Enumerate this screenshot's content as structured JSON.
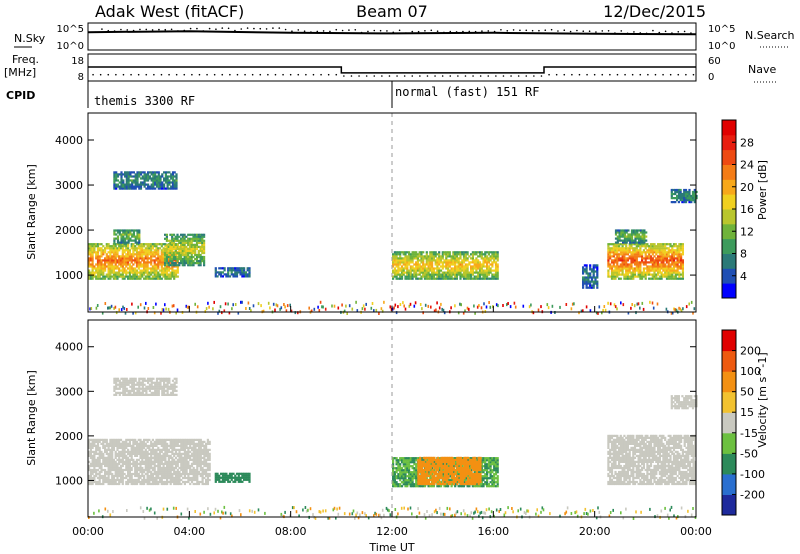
{
  "header": {
    "radar": "Adak West (fitACF)",
    "beam": "Beam 07",
    "date": "12/Dec/2015"
  },
  "strip_labels": {
    "nsky": "N.Sky",
    "nsearch": "N.Search",
    "freq": "Freq.",
    "freq_unit": "[MHz]",
    "nave": "Nave",
    "cpid": "CPID",
    "nsky_ticks": [
      "10^5",
      "10^0"
    ],
    "nsearch_ticks": [
      "10^5",
      "10^0"
    ],
    "freq_ticks": [
      "18",
      "8"
    ],
    "nave_ticks": [
      "60",
      "0"
    ]
  },
  "cpid_modes": [
    "themis 3300 RF",
    "normal (fast) 151 RF"
  ],
  "x_axis": {
    "label": "Time UT",
    "ticks": [
      "00:00",
      "04:00",
      "08:00",
      "12:00",
      "16:00",
      "20:00",
      "00:00"
    ]
  },
  "panels": {
    "power": {
      "ylabel": "Slant Range [km]",
      "yticks": [
        "4000",
        "3000",
        "2000",
        "1000"
      ],
      "cbar_label": "Power [dB]",
      "cbar_ticks": [
        "28",
        "24",
        "20",
        "16",
        "12",
        "8",
        "4"
      ],
      "cbar_colors": [
        "#0000ff",
        "#1f4fb4",
        "#2b7a78",
        "#3d9b5c",
        "#6fb33a",
        "#b9c62d",
        "#f0d020",
        "#f7a81b",
        "#f47c16",
        "#ee4a12",
        "#e81d0f",
        "#e00000"
      ]
    },
    "velocity": {
      "ylabel": "Slant Range [km]",
      "yticks": [
        "4000",
        "3000",
        "2000",
        "1000"
      ],
      "cbar_label": "Velocity [m s^-1]",
      "cbar_ticks": [
        "200",
        "100",
        "50",
        "15",
        "-15",
        "-50",
        "-100",
        "-200"
      ],
      "cbar_colors": [
        "#1e2a9c",
        "#2a6fcf",
        "#2c8a5a",
        "#6cc040",
        "#c9c9c0",
        "#f2c230",
        "#f39012",
        "#ee5a10",
        "#e00000"
      ]
    }
  },
  "chart_data": [
    {
      "type": "line",
      "title": "N.Sky / N.Search",
      "x": [
        "00:00",
        "04:00",
        "08:00",
        "12:00",
        "16:00",
        "20:00",
        "00:00"
      ],
      "series": [
        {
          "name": "N.Sky",
          "values": [
            2000,
            3000,
            1500,
            1200,
            1500,
            1000,
            800
          ]
        },
        {
          "name": "N.Search",
          "values": [
            100,
            100,
            100,
            100,
            100,
            100,
            100
          ]
        }
      ],
      "ylim": [
        1,
        100000
      ],
      "log_scale": true
    },
    {
      "type": "line",
      "title": "Freq. [MHz] / Nave",
      "x_hours": [
        0,
        10,
        10,
        18,
        18,
        24
      ],
      "series": [
        {
          "name": "Freq.",
          "values": [
            13.2,
            13.2,
            11.0,
            11.0,
            13.2,
            13.2
          ]
        },
        {
          "name": "Nave",
          "values": [
            14,
            14,
            11,
            11,
            14,
            14
          ]
        }
      ],
      "freq_range": [
        8,
        18
      ],
      "nave_range": [
        0,
        60
      ]
    },
    {
      "type": "heatmap",
      "title": "Power [dB]",
      "x_range_hours": [
        0,
        24
      ],
      "y_range_km": [
        180,
        4600
      ],
      "grid": false,
      "echo_regions": [
        {
          "t_start": 0.0,
          "t_end": 3.5,
          "r_start": 900,
          "r_end": 1700,
          "level": 24
        },
        {
          "t_start": 1.0,
          "t_end": 2.0,
          "r_start": 1700,
          "r_end": 2000,
          "level": 12
        },
        {
          "t_start": 3.0,
          "t_end": 4.6,
          "r_start": 1200,
          "r_end": 1900,
          "level": 16
        },
        {
          "t_start": 1.0,
          "t_end": 3.5,
          "r_start": 2900,
          "r_end": 3300,
          "level": 8
        },
        {
          "t_start": 5.0,
          "t_end": 6.4,
          "r_start": 950,
          "r_end": 1150,
          "level": 6
        },
        {
          "t_start": 12.0,
          "t_end": 16.2,
          "r_start": 900,
          "r_end": 1500,
          "level": 20
        },
        {
          "t_start": 20.5,
          "t_end": 23.5,
          "r_start": 900,
          "r_end": 1700,
          "level": 26
        },
        {
          "t_start": 20.8,
          "t_end": 22.0,
          "r_start": 1700,
          "r_end": 2000,
          "level": 12
        },
        {
          "t_start": 19.5,
          "t_end": 20.1,
          "r_start": 700,
          "r_end": 1200,
          "level": 6
        },
        {
          "t_start": 23.0,
          "t_end": 24.0,
          "r_start": 2600,
          "r_end": 2900,
          "level": 8
        }
      ]
    },
    {
      "type": "heatmap",
      "title": "Velocity [m s^-1]",
      "x_range_hours": [
        0,
        24
      ],
      "y_range_km": [
        180,
        4600
      ],
      "grid": false,
      "echo_regions": [
        {
          "t_start": 0.0,
          "t_end": 4.8,
          "r_start": 900,
          "r_end": 1900,
          "velocity": 0
        },
        {
          "t_start": 1.0,
          "t_end": 3.5,
          "r_start": 2900,
          "r_end": 3300,
          "velocity": 0
        },
        {
          "t_start": 5.0,
          "t_end": 6.4,
          "r_start": 950,
          "r_end": 1150,
          "velocity": 40
        },
        {
          "t_start": 12.0,
          "t_end": 16.2,
          "r_start": 850,
          "r_end": 1500,
          "velocity": 30
        },
        {
          "t_start": 13.0,
          "t_end": 15.5,
          "r_start": 900,
          "r_end": 1500,
          "velocity": -40
        },
        {
          "t_start": 20.5,
          "t_end": 24.0,
          "r_start": 900,
          "r_end": 2000,
          "velocity": 0
        },
        {
          "t_start": 23.0,
          "t_end": 24.0,
          "r_start": 2600,
          "r_end": 2900,
          "velocity": 0
        }
      ]
    }
  ]
}
